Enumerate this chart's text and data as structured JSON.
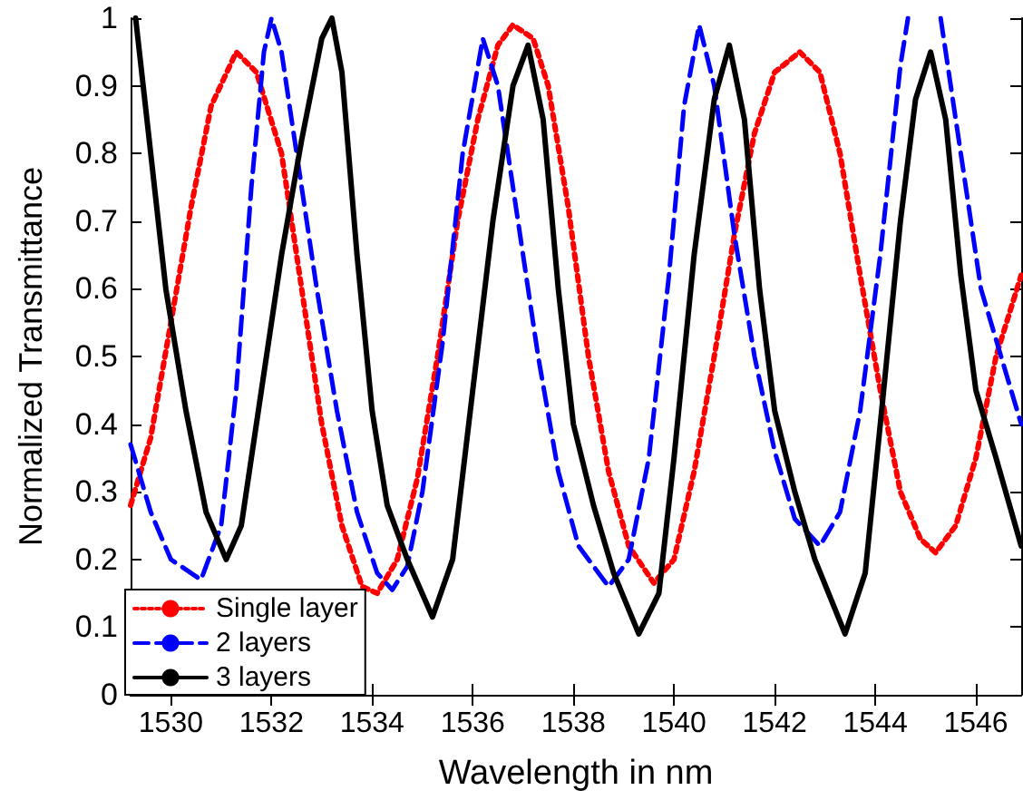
{
  "chart_data": {
    "type": "line",
    "xlabel": "Wavelength in nm",
    "ylabel": "Normalized Transmittance",
    "xlim": [
      1529.2,
      1546.9
    ],
    "ylim": [
      0,
      1
    ],
    "xticks": [
      1530,
      1532,
      1534,
      1536,
      1538,
      1540,
      1542,
      1544,
      1546
    ],
    "yticks": [
      0,
      0.1,
      0.2,
      0.3,
      0.4,
      0.5,
      0.6,
      0.7,
      0.8,
      0.9,
      1
    ],
    "grid": false,
    "legend": "bottom left",
    "marker": "none",
    "series": [
      {
        "name": "Single layer",
        "color": "#ff0000",
        "line_style": "dotted",
        "x": [
          1529.2,
          1529.6,
          1530.0,
          1530.4,
          1530.8,
          1531.3,
          1531.7,
          1532.2,
          1532.6,
          1533.0,
          1533.4,
          1533.8,
          1534.1,
          1534.5,
          1534.9,
          1535.3,
          1535.7,
          1536.1,
          1536.5,
          1536.8,
          1537.2,
          1537.5,
          1537.9,
          1538.3,
          1538.7,
          1539.1,
          1539.6,
          1540.0,
          1540.4,
          1540.8,
          1541.2,
          1541.6,
          1542.0,
          1542.5,
          1542.9,
          1543.3,
          1543.7,
          1544.1,
          1544.5,
          1544.9,
          1545.2,
          1545.6,
          1546.0,
          1546.4,
          1546.9
        ],
        "values": [
          0.28,
          0.38,
          0.55,
          0.72,
          0.87,
          0.95,
          0.92,
          0.8,
          0.6,
          0.4,
          0.25,
          0.16,
          0.15,
          0.2,
          0.32,
          0.5,
          0.7,
          0.85,
          0.96,
          0.99,
          0.97,
          0.9,
          0.72,
          0.5,
          0.33,
          0.22,
          0.165,
          0.2,
          0.33,
          0.5,
          0.68,
          0.83,
          0.92,
          0.95,
          0.92,
          0.8,
          0.62,
          0.45,
          0.3,
          0.23,
          0.21,
          0.25,
          0.35,
          0.5,
          0.62
        ]
      },
      {
        "name": "2 layers",
        "color": "#0000ff",
        "line_style": "dashed",
        "x": [
          1529.2,
          1529.6,
          1530.0,
          1530.6,
          1531.0,
          1531.3,
          1531.6,
          1531.85,
          1532.0,
          1532.2,
          1532.5,
          1532.9,
          1533.3,
          1533.7,
          1534.1,
          1534.4,
          1534.7,
          1535.0,
          1535.4,
          1535.8,
          1536.2,
          1536.5,
          1536.9,
          1537.3,
          1537.7,
          1538.1,
          1538.7,
          1539.1,
          1539.5,
          1539.9,
          1540.2,
          1540.5,
          1540.8,
          1541.2,
          1541.6,
          1542.0,
          1542.4,
          1542.9,
          1543.3,
          1543.7,
          1544.1,
          1544.5,
          1544.65,
          1545.0,
          1545.3,
          1545.6,
          1546.1,
          1546.9
        ],
        "values": [
          0.37,
          0.27,
          0.2,
          0.17,
          0.25,
          0.45,
          0.75,
          0.95,
          1.0,
          0.95,
          0.8,
          0.6,
          0.42,
          0.27,
          0.18,
          0.155,
          0.19,
          0.3,
          0.52,
          0.8,
          0.97,
          0.9,
          0.7,
          0.5,
          0.33,
          0.22,
          0.16,
          0.2,
          0.35,
          0.62,
          0.87,
          0.99,
          0.9,
          0.68,
          0.5,
          0.36,
          0.26,
          0.22,
          0.27,
          0.42,
          0.65,
          0.93,
          1.0,
          null,
          1.0,
          0.85,
          0.6,
          0.4
        ]
      },
      {
        "name": "3 layers",
        "color": "#000000",
        "line_style": "solid",
        "x": [
          1529.3,
          1529.6,
          1529.9,
          1530.3,
          1530.7,
          1531.1,
          1531.4,
          1531.8,
          1532.2,
          1532.6,
          1533.0,
          1533.2,
          1533.4,
          1533.7,
          1534.0,
          1534.3,
          1534.7,
          1535.2,
          1535.6,
          1536.0,
          1536.4,
          1536.8,
          1537.1,
          1537.4,
          1537.7,
          1538.0,
          1538.4,
          1538.8,
          1539.3,
          1539.7,
          1540.0,
          1540.4,
          1540.8,
          1541.1,
          1541.4,
          1541.7,
          1542.0,
          1542.4,
          1542.8,
          1543.4,
          1543.8,
          1544.1,
          1544.5,
          1544.8,
          1545.1,
          1545.4,
          1545.7,
          1546.0,
          1546.4,
          1546.9
        ],
        "values": [
          1.0,
          0.8,
          0.6,
          0.42,
          0.27,
          0.2,
          0.25,
          0.45,
          0.65,
          0.82,
          0.97,
          1.0,
          0.92,
          0.65,
          0.42,
          0.28,
          0.2,
          0.115,
          0.2,
          0.45,
          0.7,
          0.9,
          0.96,
          0.85,
          0.6,
          0.4,
          0.28,
          0.18,
          0.09,
          0.15,
          0.35,
          0.65,
          0.88,
          0.96,
          0.85,
          0.6,
          0.42,
          0.3,
          0.2,
          0.09,
          0.18,
          0.4,
          0.7,
          0.88,
          0.95,
          0.85,
          0.62,
          0.45,
          0.35,
          0.22
        ]
      }
    ]
  }
}
